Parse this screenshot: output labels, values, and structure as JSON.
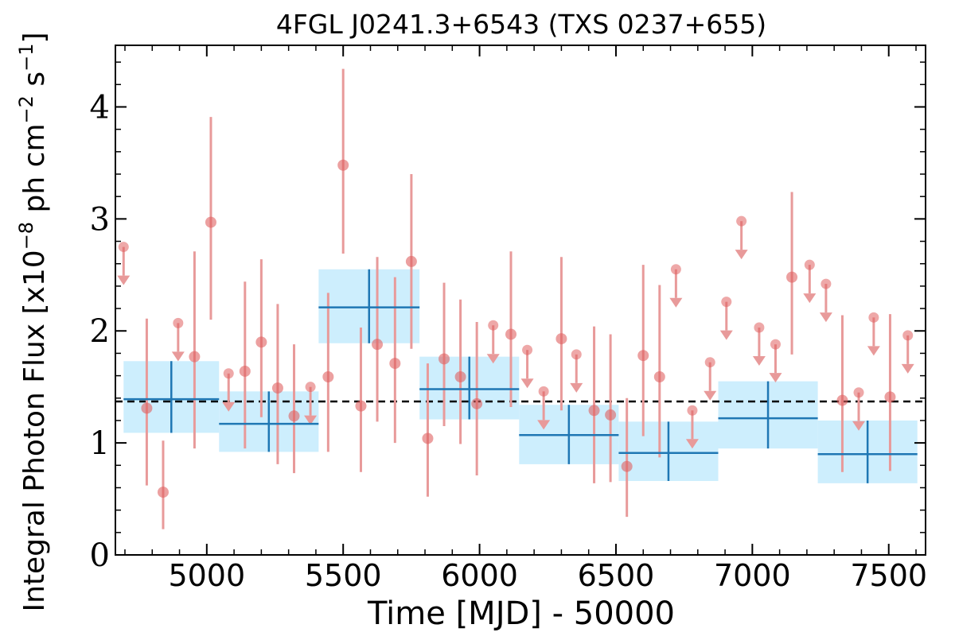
{
  "chart_data": {
    "type": "scatter",
    "title": "4FGL J0241.3+6543 (TXS 0237+655)",
    "xlabel": "Time [MJD] - 50000",
    "ylabel_parts": [
      "Integral Photon Flux [x10",
      "−8",
      " ph cm",
      "−2",
      " s",
      "−1",
      "]"
    ],
    "xlim": [
      4665,
      7635
    ],
    "ylim": [
      0,
      4.55
    ],
    "xticks": [
      5000,
      5500,
      6000,
      6500,
      7000,
      7500
    ],
    "xtick_labels": [
      "5000",
      "5500",
      "6000",
      "6500",
      "7000",
      "7500"
    ],
    "yticks": [
      0,
      1,
      2,
      3,
      4
    ],
    "ytick_labels": [
      "0",
      "1",
      "2",
      "3",
      "4"
    ],
    "average_flux": 1.37,
    "colors": {
      "points": "#e06060",
      "error_bars": "#e89a9a",
      "bins": "#1f77b4",
      "bin_band": "#cdeefd",
      "average_line": "#000000"
    },
    "series": [
      {
        "kind": "short_bins",
        "points": [
          {
            "x": 4780,
            "y": 1.31,
            "lo": 0.62,
            "hi": 2.11
          },
          {
            "x": 4840,
            "y": 0.56,
            "lo": 0.23,
            "hi": 1.02
          },
          {
            "x": 4955,
            "y": 1.77,
            "lo": 0.95,
            "hi": 2.71
          },
          {
            "x": 5015,
            "y": 2.97,
            "lo": 2.1,
            "hi": 3.91
          },
          {
            "x": 5140,
            "y": 1.64,
            "lo": 0.95,
            "hi": 2.44
          },
          {
            "x": 5200,
            "y": 1.9,
            "lo": 1.23,
            "hi": 2.64
          },
          {
            "x": 5260,
            "y": 1.49,
            "lo": 0.81,
            "hi": 2.24
          },
          {
            "x": 5320,
            "y": 1.24,
            "lo": 0.73,
            "hi": 1.88
          },
          {
            "x": 5445,
            "y": 1.59,
            "lo": 0.92,
            "hi": 2.34
          },
          {
            "x": 5500,
            "y": 3.48,
            "lo": 2.69,
            "hi": 4.34
          },
          {
            "x": 5565,
            "y": 1.33,
            "lo": 0.74,
            "hi": 2.03
          },
          {
            "x": 5625,
            "y": 1.88,
            "lo": 1.19,
            "hi": 2.66
          },
          {
            "x": 5690,
            "y": 1.71,
            "lo": 1.0,
            "hi": 2.48
          },
          {
            "x": 5750,
            "y": 2.62,
            "lo": 1.84,
            "hi": 3.4
          },
          {
            "x": 5810,
            "y": 1.04,
            "lo": 0.52,
            "hi": 1.71
          },
          {
            "x": 5870,
            "y": 1.75,
            "lo": 1.15,
            "hi": 2.43
          },
          {
            "x": 5930,
            "y": 1.59,
            "lo": 0.99,
            "hi": 2.28
          },
          {
            "x": 5990,
            "y": 1.35,
            "lo": 0.71,
            "hi": 2.08
          },
          {
            "x": 6115,
            "y": 1.97,
            "lo": 1.32,
            "hi": 2.71
          },
          {
            "x": 6300,
            "y": 1.93,
            "lo": 1.29,
            "hi": 2.66
          },
          {
            "x": 6420,
            "y": 1.29,
            "lo": 0.64,
            "hi": 2.04
          },
          {
            "x": 6480,
            "y": 1.25,
            "lo": 0.65,
            "hi": 1.97
          },
          {
            "x": 6540,
            "y": 0.79,
            "lo": 0.34,
            "hi": 1.4
          },
          {
            "x": 6600,
            "y": 1.78,
            "lo": 1.06,
            "hi": 2.59
          },
          {
            "x": 6660,
            "y": 1.59,
            "lo": 0.87,
            "hi": 2.41
          },
          {
            "x": 7145,
            "y": 2.48,
            "lo": 1.79,
            "hi": 3.24
          },
          {
            "x": 7330,
            "y": 1.38,
            "lo": 0.74,
            "hi": 2.14
          },
          {
            "x": 7505,
            "y": 1.41,
            "lo": 0.75,
            "hi": 2.15
          }
        ]
      },
      {
        "kind": "upper_limits",
        "points": [
          {
            "x": 4695,
            "y": 2.75
          },
          {
            "x": 4895,
            "y": 2.07
          },
          {
            "x": 5080,
            "y": 1.62
          },
          {
            "x": 5380,
            "y": 1.5
          },
          {
            "x": 6050,
            "y": 2.05
          },
          {
            "x": 6175,
            "y": 1.83
          },
          {
            "x": 6235,
            "y": 1.46
          },
          {
            "x": 6355,
            "y": 1.79
          },
          {
            "x": 6720,
            "y": 2.55
          },
          {
            "x": 6780,
            "y": 1.29
          },
          {
            "x": 6845,
            "y": 1.72
          },
          {
            "x": 6905,
            "y": 2.26
          },
          {
            "x": 6960,
            "y": 2.98
          },
          {
            "x": 7025,
            "y": 2.03
          },
          {
            "x": 7085,
            "y": 1.88
          },
          {
            "x": 7210,
            "y": 2.59
          },
          {
            "x": 7270,
            "y": 2.42
          },
          {
            "x": 7390,
            "y": 1.45
          },
          {
            "x": 7445,
            "y": 2.12
          },
          {
            "x": 7570,
            "y": 1.96
          }
        ]
      },
      {
        "kind": "long_bins",
        "bins": [
          {
            "x0": 4695,
            "x1": 5045,
            "y": 1.39,
            "lo": 1.09,
            "hi": 1.73
          },
          {
            "x0": 5045,
            "x1": 5410,
            "y": 1.17,
            "lo": 0.92,
            "hi": 1.46
          },
          {
            "x0": 5410,
            "x1": 5780,
            "y": 2.21,
            "lo": 1.89,
            "hi": 2.55
          },
          {
            "x0": 5780,
            "x1": 6145,
            "y": 1.48,
            "lo": 1.21,
            "hi": 1.77
          },
          {
            "x0": 6145,
            "x1": 6510,
            "y": 1.07,
            "lo": 0.81,
            "hi": 1.34
          },
          {
            "x0": 6510,
            "x1": 6875,
            "y": 0.91,
            "lo": 0.66,
            "hi": 1.19
          },
          {
            "x0": 6875,
            "x1": 7240,
            "y": 1.22,
            "lo": 0.95,
            "hi": 1.55
          },
          {
            "x0": 7240,
            "x1": 7605,
            "y": 0.9,
            "lo": 0.64,
            "hi": 1.2
          }
        ]
      }
    ]
  }
}
